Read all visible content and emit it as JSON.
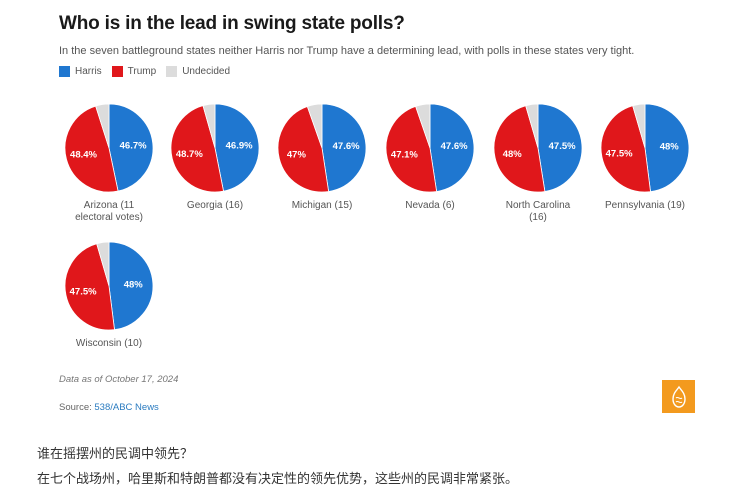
{
  "chart": {
    "title": "Who is in the lead in swing state polls?",
    "subtitle": "In the seven battleground states neither Harris nor Trump have a determining lead, with polls in these states very tight.",
    "legend": [
      {
        "label": "Harris",
        "color": "#1f77d0"
      },
      {
        "label": "Trump",
        "color": "#e0171b"
      },
      {
        "label": "Undecided",
        "color": "#dcdcdc"
      }
    ],
    "date_note": "Data as of October 17, 2024",
    "source_prefix": "Source: ",
    "source_link": "538/ABC News",
    "logo_icon": "al-jazeera-logo-icon"
  },
  "chart_data": {
    "type": "pie",
    "title": "Who is in the lead in swing state polls?",
    "subtitle": "In the seven battleground states neither Harris nor Trump have a determining lead, with polls in these states very tight.",
    "legend_position": "top-left",
    "series_names": [
      "Harris",
      "Trump",
      "Undecided"
    ],
    "colors": {
      "Harris": "#1f77d0",
      "Trump": "#e0171b",
      "Undecided": "#dcdcdc"
    },
    "undecided_note": "Undecided values are derived as 100 minus the labeled Harris and Trump shares; they are not printed on the chart.",
    "pies": [
      {
        "state": "Arizona",
        "label": "Arizona (11 electoral votes)",
        "electoral_votes": 11,
        "harris": 46.7,
        "trump": 48.4,
        "undecided_derived": 4.9,
        "harris_label": "46.7%",
        "trump_label": "48.4%"
      },
      {
        "state": "Georgia",
        "label": "Georgia (16)",
        "electoral_votes": 16,
        "harris": 46.9,
        "trump": 48.7,
        "undecided_derived": 4.4,
        "harris_label": "46.9%",
        "trump_label": "48.7%"
      },
      {
        "state": "Michigan",
        "label": "Michigan (15)",
        "electoral_votes": 15,
        "harris": 47.6,
        "trump": 47.0,
        "undecided_derived": 5.4,
        "harris_label": "47.6%",
        "trump_label": "47%"
      },
      {
        "state": "Nevada",
        "label": "Nevada (6)",
        "electoral_votes": 6,
        "harris": 47.6,
        "trump": 47.1,
        "undecided_derived": 5.3,
        "harris_label": "47.6%",
        "trump_label": "47.1%"
      },
      {
        "state": "North Carolina",
        "label": "North Carolina (16)",
        "electoral_votes": 16,
        "harris": 47.5,
        "trump": 48.0,
        "undecided_derived": 4.5,
        "harris_label": "47.5%",
        "trump_label": "48%"
      },
      {
        "state": "Pennsylvania",
        "label": "Pennsylvania (19)",
        "electoral_votes": 19,
        "harris": 48.0,
        "trump": 47.5,
        "undecided_derived": 4.5,
        "harris_label": "48%",
        "trump_label": "47.5%"
      },
      {
        "state": "Wisconsin",
        "label": "Wisconsin (10)",
        "electoral_votes": 10,
        "harris": 48.0,
        "trump": 47.5,
        "undecided_derived": 4.5,
        "harris_label": "48%",
        "trump_label": "47.5%"
      }
    ]
  },
  "caption": {
    "line1": "谁在摇摆州的民调中领先？",
    "line2": "在七个战场州，哈里斯和特朗普都没有决定性的领先优势，这些州的民调非常紧张。"
  }
}
